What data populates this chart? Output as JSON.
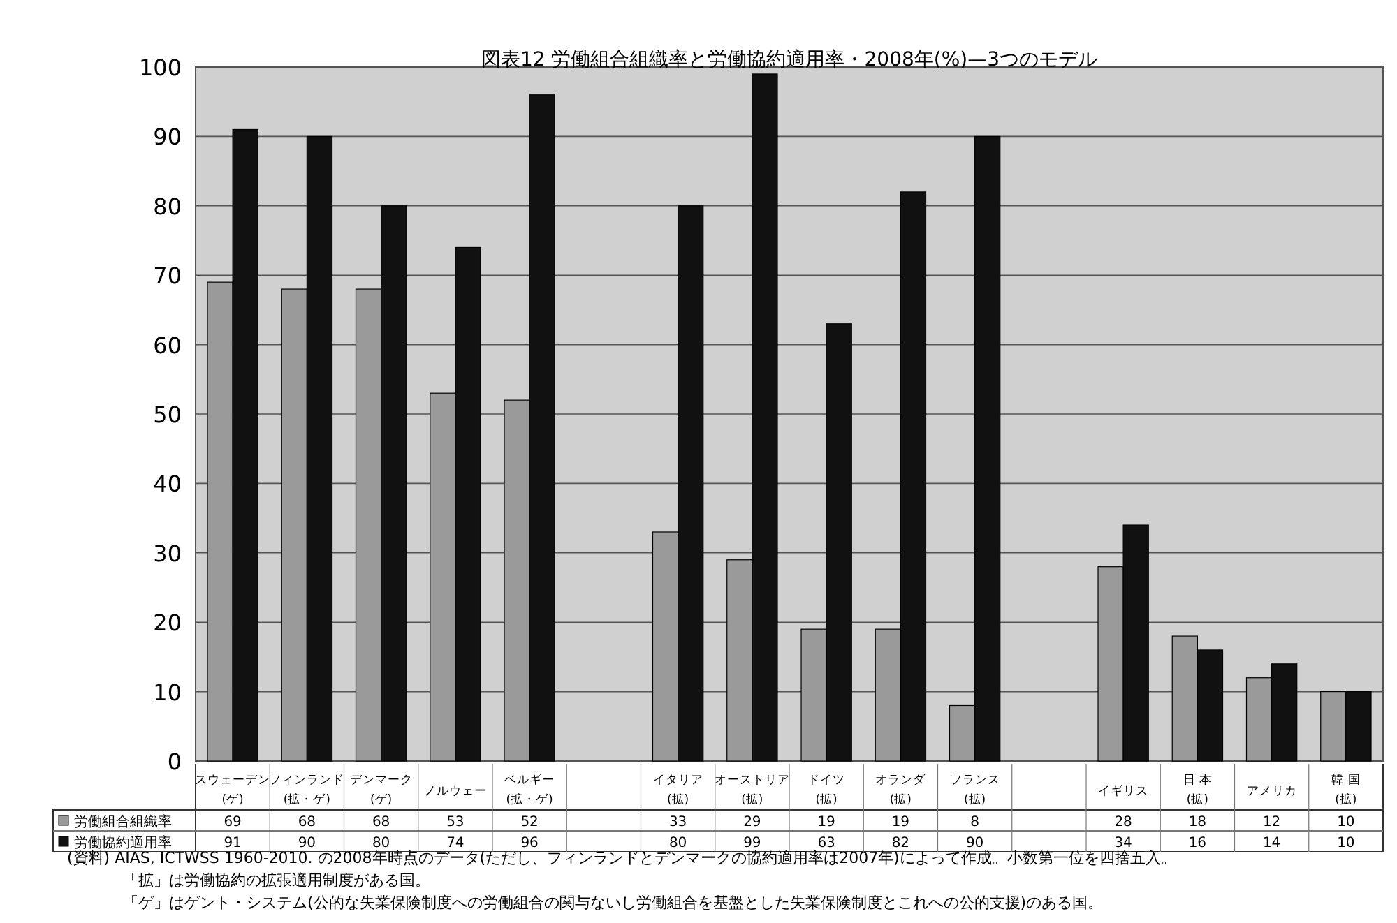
{
  "chart_data": {
    "type": "bar",
    "title": "図表12 労働組合組織率と労働協約適用率・2008年(%)—3つのモデル",
    "categories": [
      "スウェーデン\n(ゲ)",
      "フィンランド\n(拡・ゲ)",
      "デンマーク\n(ゲ)",
      "ノルウェー",
      "ベルギー\n(拡・ゲ)",
      null,
      "イタリア\n(拡)",
      "オーストリア\n(拡)",
      "ドイツ\n(拡)",
      "オランダ\n(拡)",
      "フランス\n(拡)",
      null,
      "イギリス",
      "日 本\n(拡)",
      "アメリカ",
      "韓 国\n(拡)"
    ],
    "series": [
      {
        "name": "労働組合組織率",
        "color": "#9a9a9a",
        "values": [
          69,
          68,
          68,
          53,
          52,
          null,
          33,
          29,
          19,
          19,
          8,
          null,
          28,
          18,
          12,
          10
        ]
      },
      {
        "name": "労働協約適用率",
        "color": "#111111",
        "values": [
          91,
          90,
          80,
          74,
          96,
          null,
          80,
          99,
          63,
          82,
          90,
          null,
          34,
          16,
          14,
          10
        ]
      }
    ],
    "ylim": [
      0,
      100
    ],
    "yticks": [
      0,
      10,
      20,
      30,
      40,
      50,
      60,
      70,
      80,
      90,
      100
    ],
    "grid": "y",
    "data_labels": true,
    "legend": "bottom left",
    "annotations": [
      "(資料) AIAS, ICTWSS 1960-2010. の2008年時点のデータ(ただし、フィンランドとデンマークの協約適用率は2007年)によって作成。小数第一位を四捨五入。",
      "「拡」は労働協約の拡張適用制度がある国。",
      "「ゲ」はゲント・システム(公的な失業保険制度への労働組合の関与ないし労働組合を基盤とした失業保険制度とこれへの公的支援)のある国。"
    ]
  }
}
